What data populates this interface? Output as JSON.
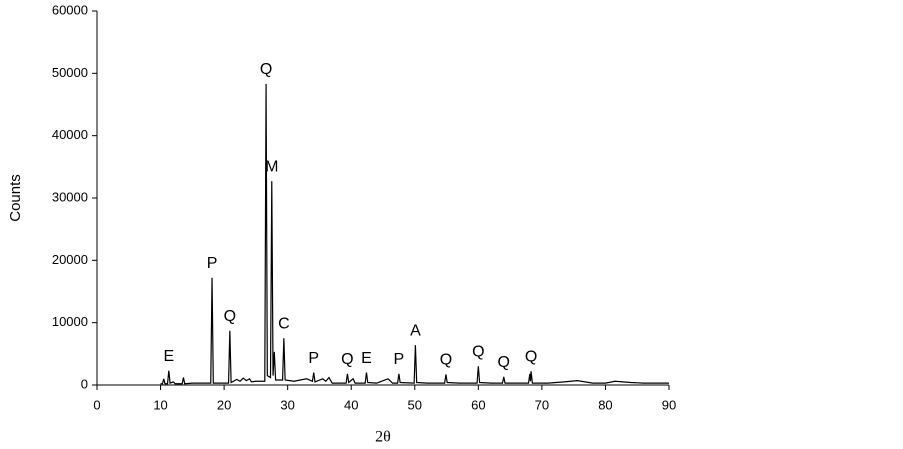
{
  "chart_data": {
    "type": "line",
    "x_label": "2θ",
    "y_label": "Counts",
    "x": [
      10,
      10.3,
      10.5,
      10.7,
      11.1,
      11.3,
      11.5,
      12,
      12.3,
      13.4,
      13.6,
      13.8,
      15,
      17.9,
      18.1,
      18.3,
      20,
      20.7,
      20.9,
      21.1,
      22,
      22.5,
      23,
      23.5,
      24,
      24.3,
      25,
      26.4,
      26.6,
      26.8,
      27.3,
      27.5,
      27.7,
      27.9,
      28.1,
      29.2,
      29.4,
      29.6,
      31,
      32,
      33,
      33.9,
      34.1,
      34.3,
      35.5,
      36,
      36.5,
      37,
      39.2,
      39.4,
      39.6,
      40.3,
      40.6,
      42.2,
      42.4,
      42.6,
      44,
      45.8,
      46.5,
      47.3,
      47.5,
      47.7,
      49.9,
      50.1,
      50.3,
      52,
      54.7,
      54.9,
      55.1,
      57,
      59.8,
      60,
      60.2,
      62,
      63.8,
      64,
      64.2,
      67.9,
      68.1,
      68.2,
      68.3,
      68.5,
      71,
      73.5,
      75.6,
      78,
      80,
      81.5,
      84,
      86,
      90
    ],
    "series": [
      {
        "color": "#000000",
        "values": [
          200,
          200,
          1000,
          200,
          200,
          2300,
          300,
          500,
          200,
          200,
          1200,
          200,
          300,
          300,
          17200,
          300,
          300,
          300,
          8700,
          400,
          900,
          600,
          1100,
          700,
          1000,
          500,
          600,
          600,
          48300,
          1500,
          1200,
          32700,
          1500,
          5300,
          800,
          800,
          7500,
          800,
          600,
          800,
          1000,
          600,
          2000,
          500,
          1000,
          600,
          1200,
          300,
          300,
          1800,
          400,
          1000,
          300,
          300,
          2000,
          400,
          300,
          1000,
          300,
          300,
          1800,
          400,
          300,
          6400,
          400,
          300,
          300,
          1700,
          400,
          300,
          300,
          3000,
          400,
          300,
          300,
          1300,
          300,
          300,
          1800,
          600,
          2200,
          300,
          300,
          500,
          700,
          300,
          300,
          600,
          400,
          300,
          300
        ]
      }
    ],
    "annotations": [
      {
        "label": "E",
        "x": 11.3,
        "y": 2300
      },
      {
        "label": "P",
        "x": 18.1,
        "y": 17200
      },
      {
        "label": "Q",
        "x": 20.9,
        "y": 8700
      },
      {
        "label": "Q",
        "x": 26.6,
        "y": 48300
      },
      {
        "label": "M",
        "x": 27.5,
        "y": 32700
      },
      {
        "label": "C",
        "x": 29.4,
        "y": 7500
      },
      {
        "label": "P",
        "x": 34.1,
        "y": 2000
      },
      {
        "label": "Q",
        "x": 39.4,
        "y": 1800
      },
      {
        "label": "E",
        "x": 42.4,
        "y": 2000
      },
      {
        "label": "P",
        "x": 47.5,
        "y": 1800
      },
      {
        "label": "A",
        "x": 50.1,
        "y": 6400
      },
      {
        "label": "Q",
        "x": 54.9,
        "y": 1700
      },
      {
        "label": "Q",
        "x": 60,
        "y": 3000
      },
      {
        "label": "Q",
        "x": 64,
        "y": 1300
      },
      {
        "label": "Q",
        "x": 68.3,
        "y": 2200
      }
    ],
    "xlim": [
      0,
      90
    ],
    "xticks": [
      0,
      10,
      20,
      30,
      40,
      50,
      60,
      70,
      80,
      90
    ],
    "ylim": [
      0,
      60000
    ],
    "yticks": [
      0,
      10000,
      20000,
      30000,
      40000,
      50000,
      60000
    ]
  }
}
